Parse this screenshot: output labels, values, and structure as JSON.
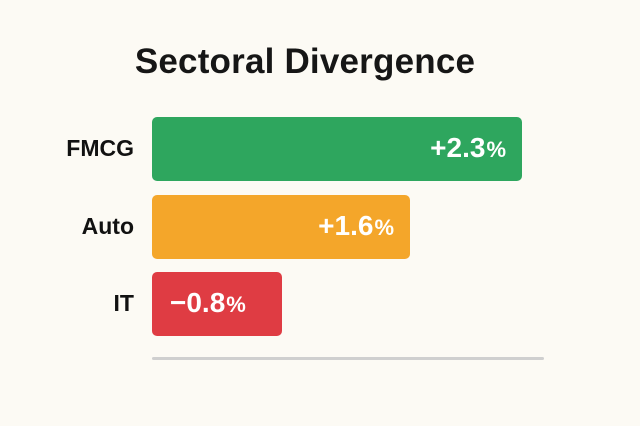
{
  "chart_data": {
    "type": "bar",
    "orientation": "horizontal",
    "title": "Sectoral Divergence",
    "categories": [
      "FMCG",
      "Auto",
      "IT"
    ],
    "values": [
      2.3,
      1.6,
      -0.8
    ],
    "value_labels": [
      "+2.3",
      "+1.6",
      "−0.8"
    ],
    "unit": "%",
    "colors": [
      "#2ea65e",
      "#f4a62a",
      "#df3c43"
    ],
    "grid": false,
    "legend": "none"
  }
}
